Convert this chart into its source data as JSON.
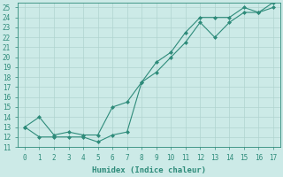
{
  "xlabel": "Humidex (Indice chaleur)",
  "x": [
    0,
    1,
    2,
    3,
    4,
    5,
    6,
    7,
    8,
    9,
    10,
    11,
    12,
    13,
    14,
    15,
    16,
    17
  ],
  "line1_y": [
    13,
    12,
    12,
    12,
    12,
    11.5,
    12.2,
    12.5,
    17.5,
    19.5,
    20.5,
    22.5,
    24,
    24,
    24,
    25,
    24.5,
    25
  ],
  "line2_y": [
    13,
    14,
    12.2,
    12.5,
    12.2,
    12.2,
    15,
    15.5,
    17.5,
    18.5,
    20,
    21.5,
    23.5,
    22,
    23.5,
    24.5,
    24.5,
    25.5
  ],
  "line_color": "#2e8b7a",
  "marker": "D",
  "marker_size": 2.0,
  "bg_color": "#cceae7",
  "grid_major_color": "#b0d4d0",
  "grid_minor_color": "#c8e4e1",
  "ylim": [
    11,
    25.5
  ],
  "xlim": [
    -0.5,
    17.5
  ],
  "yticks": [
    11,
    12,
    13,
    14,
    15,
    16,
    17,
    18,
    19,
    20,
    21,
    22,
    23,
    24,
    25
  ],
  "xticks": [
    0,
    1,
    2,
    3,
    4,
    5,
    6,
    7,
    8,
    9,
    10,
    11,
    12,
    13,
    14,
    15,
    16,
    17
  ],
  "tick_color": "#2e8b7a",
  "label_color": "#2e8b7a",
  "spine_color": "#2e8b7a",
  "tick_fontsize": 5.5,
  "label_fontsize": 6.5
}
